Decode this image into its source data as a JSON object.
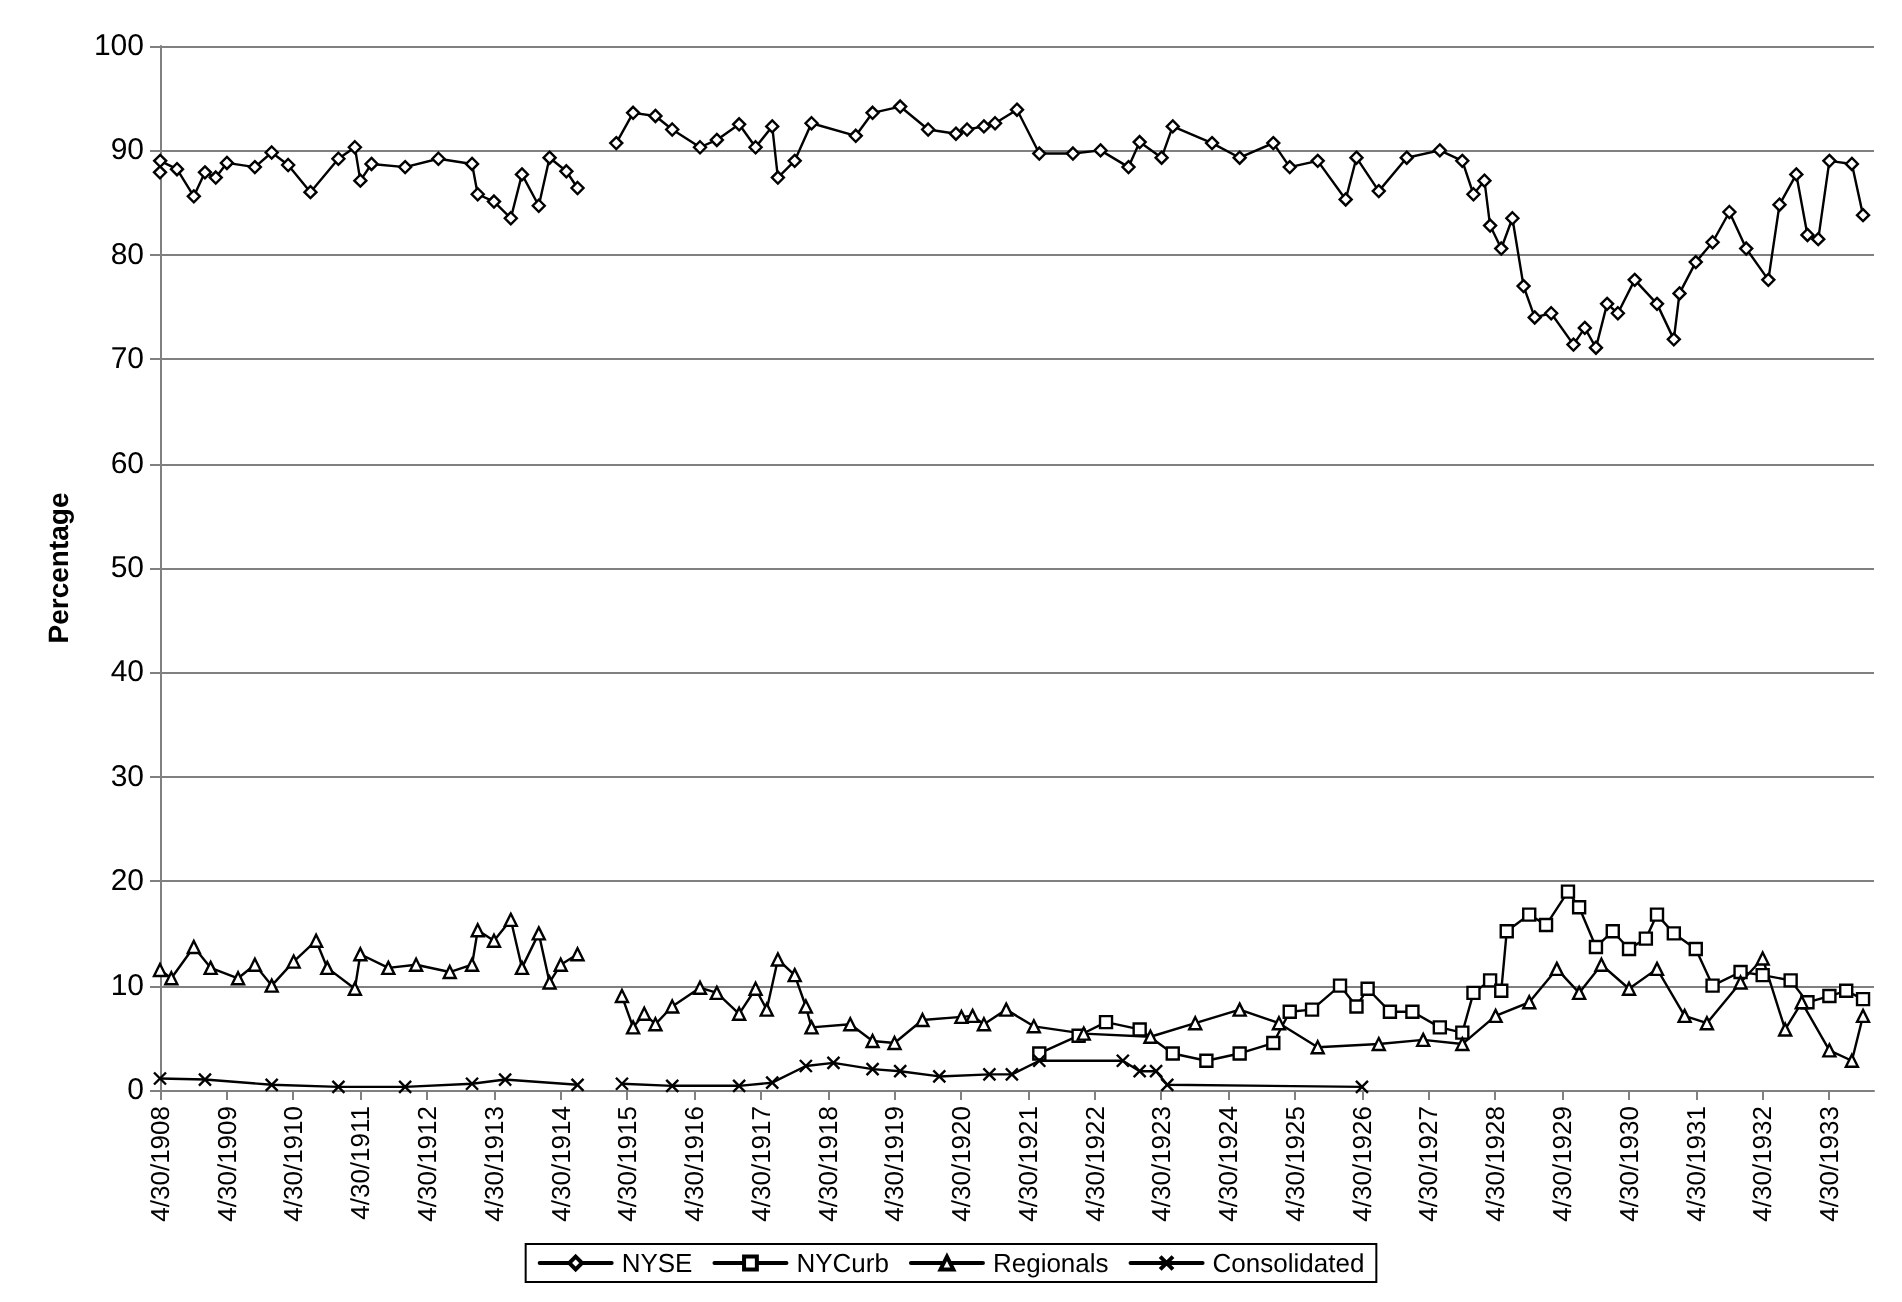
{
  "chart_data": {
    "type": "line",
    "ylabel": "Percentage",
    "ylim": [
      0,
      100
    ],
    "yticks": [
      0,
      10,
      20,
      30,
      40,
      50,
      60,
      70,
      80,
      90,
      100
    ],
    "grid": "y",
    "legend": "bottom",
    "xlim": [
      "1908-04-30",
      "1933-12-31"
    ],
    "xticks": [
      {
        "value": "1908-04-30",
        "label": "4/30/1908"
      },
      {
        "value": "1909-04-30",
        "label": "4/30/1909"
      },
      {
        "value": "1910-04-30",
        "label": "4/30/1910"
      },
      {
        "value": "1911-04-30",
        "label": "4/30/1911"
      },
      {
        "value": "1912-04-30",
        "label": "4/30/1912"
      },
      {
        "value": "1913-04-30",
        "label": "4/30/1913"
      },
      {
        "value": "1914-04-30",
        "label": "4/30/1914"
      },
      {
        "value": "1915-04-30",
        "label": "4/30/1915"
      },
      {
        "value": "1916-04-30",
        "label": "4/30/1916"
      },
      {
        "value": "1917-04-30",
        "label": "4/30/1917"
      },
      {
        "value": "1918-04-30",
        "label": "4/30/1918"
      },
      {
        "value": "1919-04-30",
        "label": "4/30/1919"
      },
      {
        "value": "1920-04-30",
        "label": "4/30/1920"
      },
      {
        "value": "1921-04-30",
        "label": "4/30/1921"
      },
      {
        "value": "1922-04-30",
        "label": "4/30/1922"
      },
      {
        "value": "1923-04-30",
        "label": "4/30/1923"
      },
      {
        "value": "1924-04-30",
        "label": "4/30/1924"
      },
      {
        "value": "1925-04-30",
        "label": "4/30/1925"
      },
      {
        "value": "1926-04-30",
        "label": "4/30/1926"
      },
      {
        "value": "1927-04-30",
        "label": "4/30/1927"
      },
      {
        "value": "1928-04-30",
        "label": "4/30/1928"
      },
      {
        "value": "1929-04-30",
        "label": "4/30/1929"
      },
      {
        "value": "1930-04-30",
        "label": "4/30/1930"
      },
      {
        "value": "1931-04-30",
        "label": "4/30/1931"
      },
      {
        "value": "1932-04-30",
        "label": "4/30/1932"
      },
      {
        "value": "1933-04-30",
        "label": "4/30/1933"
      }
    ],
    "series": [
      {
        "name": "NYSE",
        "color": "#000000",
        "marker": "diamond",
        "x": [
          "1908-04-30",
          "1908-05",
          "1908-08",
          "1908-11",
          "1909-01",
          "1909-03",
          "1909-05",
          "1909-10",
          "1910-01",
          "1910-04",
          "1910-08",
          "1911-01",
          "1911-04",
          "1911-05",
          "1911-07",
          "1912-01",
          "1912-07",
          "1913-01",
          "1913-02",
          "1913-05",
          "1913-08",
          "1913-10",
          "1914-01",
          "1914-03",
          "1914-06",
          "1914-08",
          "1914-10",
          "1915-03",
          "1915-06",
          "1915-10",
          "1916-01",
          "1916-06",
          "1916-09",
          "1917-01",
          "1917-04",
          "1917-07",
          "1917-08",
          "1917-11",
          "1918-02",
          "1918-10",
          "1919-01",
          "1919-06",
          "1919-11",
          "1920-04",
          "1920-06",
          "1920-09",
          "1920-11",
          "1921-03",
          "1921-07",
          "1922-01",
          "1922-06",
          "1922-11",
          "1923-01",
          "1923-05",
          "1923-07",
          "1924-02",
          "1924-07",
          "1925-01",
          "1925-04",
          "1925-09",
          "1926-02",
          "1926-04",
          "1926-08",
          "1927-01",
          "1927-07",
          "1927-11",
          "1928-01",
          "1928-03",
          "1928-04",
          "1928-06",
          "1928-08",
          "1928-10",
          "1928-12",
          "1929-03",
          "1929-07",
          "1929-09",
          "1929-11",
          "1930-01",
          "1930-03",
          "1930-06",
          "1930-10",
          "1931-01",
          "1931-02",
          "1931-05",
          "1931-08",
          "1931-11",
          "1932-02",
          "1932-06",
          "1932-08",
          "1932-11",
          "1933-01",
          "1933-03",
          "1933-05",
          "1933-09",
          "1933-11"
        ],
        "values": [
          87.9,
          89,
          88.2,
          85.6,
          87.9,
          87.4,
          88.8,
          88.4,
          89.8,
          88.6,
          86,
          89.2,
          90.3,
          87.1,
          88.7,
          88.4,
          89.2,
          88.7,
          85.8,
          85.1,
          83.5,
          87.7,
          84.7,
          89.3,
          88,
          86.4,
          null,
          90.7,
          93.6,
          93.3,
          92,
          90.3,
          91,
          92.5,
          90.3,
          92.3,
          87.4,
          89,
          92.6,
          91.4,
          93.6,
          94.2,
          92,
          91.6,
          92,
          92.3,
          92.6,
          93.9,
          89.7,
          89.7,
          90,
          88.4,
          90.8,
          89.3,
          92.3,
          90.7,
          89.3,
          90.7,
          88.4,
          89,
          85.3,
          89.3,
          86.1,
          89.3,
          90,
          89,
          85.8,
          87.1,
          82.8,
          80.6,
          83.5,
          77,
          74,
          74.4,
          71.4,
          73,
          71.1,
          75.3,
          74.4,
          77.6,
          75.3,
          71.9,
          76.3,
          79.3,
          81.2,
          84.1,
          80.6,
          77.6,
          84.8,
          87.7,
          81.9,
          81.5,
          89,
          88.7,
          83.8
        ]
      },
      {
        "name": "NYCurb",
        "color": "#000000",
        "marker": "square",
        "x": [
          "1921-07",
          "1922-02",
          "1922-07",
          "1923-01",
          "1923-07",
          "1924-01",
          "1924-07",
          "1925-01",
          "1925-04",
          "1925-08",
          "1926-01",
          "1926-04",
          "1926-06",
          "1926-10",
          "1927-02",
          "1927-07",
          "1927-11",
          "1928-01",
          "1928-04",
          "1928-06",
          "1928-07",
          "1928-11",
          "1929-02",
          "1929-06",
          "1929-08",
          "1929-11",
          "1930-02",
          "1930-05",
          "1930-08",
          "1930-10",
          "1931-01",
          "1931-05",
          "1931-08",
          "1932-01",
          "1932-05",
          "1932-10",
          "1933-01",
          "1933-05",
          "1933-08",
          "1933-11"
        ],
        "values": [
          3.5,
          5.2,
          6.5,
          5.8,
          3.5,
          2.8,
          3.5,
          4.5,
          7.5,
          7.7,
          10,
          8,
          9.7,
          7.5,
          7.5,
          6,
          5.5,
          9.3,
          10.5,
          9.5,
          15.2,
          16.8,
          15.8,
          19,
          17.5,
          13.7,
          15.2,
          13.5,
          14.5,
          16.8,
          15,
          13.5,
          10,
          11.3,
          11,
          10.5,
          8.4,
          9,
          9.5,
          8.7
        ]
      },
      {
        "name": "Regionals",
        "color": "#000000",
        "marker": "triangle",
        "x": [
          "1908-04-30",
          "1908-07",
          "1908-11",
          "1909-02",
          "1909-07",
          "1909-10",
          "1910-01",
          "1910-05",
          "1910-09",
          "1910-11",
          "1911-04",
          "1911-05",
          "1911-10",
          "1912-03",
          "1912-09",
          "1913-01",
          "1913-02",
          "1913-05",
          "1913-08",
          "1913-10",
          "1914-01",
          "1914-03",
          "1914-05",
          "1914-08",
          "1914-10",
          "1915-04",
          "1915-06",
          "1915-08",
          "1915-10",
          "1916-01",
          "1916-06",
          "1916-09",
          "1917-01",
          "1917-04",
          "1917-06",
          "1917-08",
          "1917-11",
          "1918-01",
          "1918-02",
          "1918-09",
          "1919-01",
          "1919-05",
          "1919-10",
          "1920-05",
          "1920-07",
          "1920-09",
          "1921-01",
          "1921-06",
          "1922-03",
          "1923-03",
          "1923-11",
          "1924-07",
          "1925-02",
          "1925-09",
          "1926-08",
          "1927-04",
          "1927-11",
          "1928-05",
          "1928-11",
          "1929-04",
          "1929-08",
          "1929-12",
          "1930-05",
          "1930-10",
          "1931-03",
          "1931-07",
          "1932-01",
          "1932-05",
          "1932-09",
          "1932-12",
          "1933-05",
          "1933-09",
          "1933-11"
        ],
        "values": [
          11.5,
          10.7,
          13.7,
          11.7,
          10.7,
          12,
          10,
          12.3,
          14.3,
          11.7,
          9.7,
          13,
          11.7,
          12,
          11.3,
          12,
          15.3,
          14.3,
          16.3,
          11.7,
          15,
          10.3,
          12,
          13,
          null,
          9,
          6,
          7.3,
          6.3,
          8,
          9.8,
          9.3,
          7.3,
          9.7,
          7.7,
          12.5,
          11,
          8,
          6,
          6.3,
          4.7,
          4.5,
          6.7,
          7,
          7.1,
          6.3,
          7.7,
          6.1,
          5.4,
          5.1,
          6.4,
          7.7,
          6.4,
          4.1,
          4.4,
          4.8,
          4.4,
          7.1,
          8.4,
          11.6,
          9.3,
          12,
          9.7,
          11.6,
          7.1,
          6.4,
          10.3,
          12.6,
          5.8,
          8.4,
          3.8,
          2.8,
          7.1
        ]
      },
      {
        "name": "Consolidated",
        "color": "#000000",
        "marker": "cross",
        "x": [
          "1908-04-30",
          "1909-01",
          "1910-01",
          "1911-01",
          "1912-01",
          "1913-01",
          "1913-07",
          "1914-08",
          "1914-10",
          "1915-04",
          "1916-01",
          "1917-01",
          "1917-07",
          "1918-01",
          "1918-06",
          "1919-01",
          "1919-06",
          "1920-01",
          "1920-10",
          "1921-02",
          "1921-07",
          "1922-10",
          "1923-01",
          "1923-04",
          "1923-06",
          "1926-05"
        ],
        "values": [
          1.1,
          1,
          0.5,
          0.3,
          0.3,
          0.6,
          1,
          0.5,
          null,
          0.6,
          0.4,
          0.4,
          0.7,
          2.3,
          2.6,
          2,
          1.8,
          1.3,
          1.5,
          1.5,
          2.8,
          2.8,
          1.8,
          1.8,
          0.5,
          0.3
        ]
      }
    ]
  }
}
